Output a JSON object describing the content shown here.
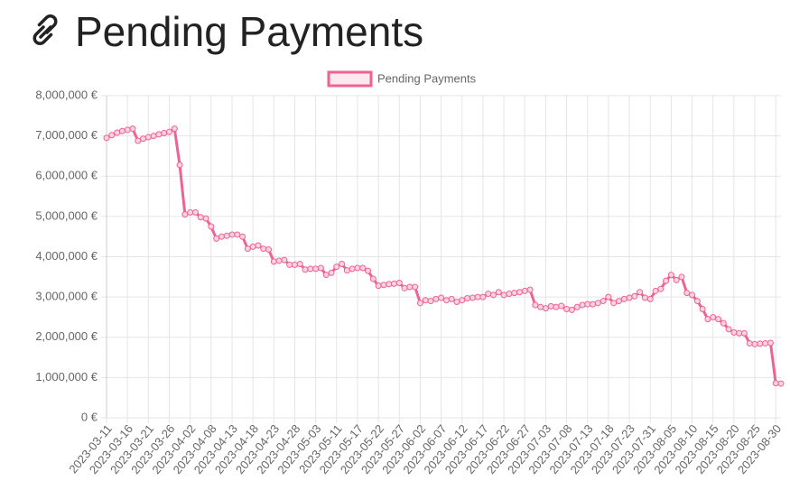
{
  "chart_data": {
    "type": "line",
    "title": "Pending Payments",
    "categories": [
      "2023-03-11",
      null,
      null,
      null,
      "2023-03-16",
      null,
      null,
      null,
      "2023-03-21",
      null,
      null,
      null,
      "2023-03-26",
      null,
      null,
      null,
      "2023-04-02",
      null,
      null,
      null,
      "2023-04-08",
      null,
      null,
      null,
      "2023-04-13",
      null,
      null,
      null,
      "2023-04-18",
      null,
      null,
      null,
      "2023-04-23",
      null,
      null,
      null,
      "2023-04-28",
      null,
      null,
      null,
      "2023-05-03",
      null,
      null,
      null,
      "2023-05-11",
      null,
      null,
      null,
      "2023-05-17",
      null,
      null,
      null,
      "2023-05-22",
      null,
      null,
      null,
      "2023-05-27",
      null,
      null,
      null,
      "2023-06-02",
      null,
      null,
      null,
      "2023-06-07",
      null,
      null,
      null,
      "2023-06-12",
      null,
      null,
      null,
      "2023-06-17",
      null,
      null,
      null,
      "2023-06-22",
      null,
      null,
      null,
      "2023-06-27",
      null,
      null,
      null,
      "2023-07-03",
      null,
      null,
      null,
      "2023-07-08",
      null,
      null,
      null,
      "2023-07-13",
      null,
      null,
      null,
      "2023-07-18",
      null,
      null,
      null,
      "2023-07-23",
      null,
      null,
      null,
      "2023-07-31",
      null,
      null,
      null,
      "2023-08-05",
      null,
      null,
      null,
      "2023-08-10",
      null,
      null,
      null,
      "2023-08-15",
      null,
      null,
      null,
      "2023-08-20",
      null,
      null,
      null,
      "2023-08-25",
      null,
      null,
      null,
      "2023-08-30",
      null
    ],
    "series": [
      {
        "name": "Pending Payments",
        "color": "#f06292",
        "values": [
          6950000,
          7020000,
          7080000,
          7120000,
          7150000,
          7180000,
          6880000,
          6930000,
          6970000,
          7000000,
          7040000,
          7070000,
          7100000,
          7180000,
          6280000,
          5050000,
          5100000,
          5100000,
          4980000,
          4950000,
          4750000,
          4450000,
          4500000,
          4520000,
          4550000,
          4550000,
          4500000,
          4200000,
          4250000,
          4280000,
          4200000,
          4180000,
          3880000,
          3900000,
          3920000,
          3800000,
          3800000,
          3820000,
          3680000,
          3700000,
          3700000,
          3720000,
          3550000,
          3600000,
          3750000,
          3820000,
          3660000,
          3700000,
          3720000,
          3720000,
          3650000,
          3450000,
          3280000,
          3300000,
          3320000,
          3330000,
          3350000,
          3220000,
          3250000,
          3250000,
          2850000,
          2920000,
          2900000,
          2950000,
          2980000,
          2920000,
          2950000,
          2880000,
          2920000,
          2970000,
          2980000,
          3000000,
          3000000,
          3080000,
          3050000,
          3120000,
          3050000,
          3080000,
          3100000,
          3120000,
          3150000,
          3180000,
          2800000,
          2750000,
          2720000,
          2770000,
          2750000,
          2780000,
          2700000,
          2680000,
          2750000,
          2800000,
          2820000,
          2820000,
          2850000,
          2900000,
          3000000,
          2850000,
          2900000,
          2950000,
          2980000,
          3020000,
          3120000,
          2980000,
          2950000,
          3150000,
          3200000,
          3400000,
          3550000,
          3420000,
          3500000,
          3100000,
          3050000,
          2900000,
          2700000,
          2450000,
          2500000,
          2450000,
          2350000,
          2200000,
          2120000,
          2100000,
          2100000,
          1850000,
          1830000,
          1840000,
          1850000,
          1860000,
          860000,
          850000
        ]
      }
    ],
    "ylim": [
      0,
      8000000
    ],
    "yticks": [
      {
        "value": 0,
        "label": "0 €"
      },
      {
        "value": 1000000,
        "label": "1,000,000 €"
      },
      {
        "value": 2000000,
        "label": "2,000,000 €"
      },
      {
        "value": 3000000,
        "label": "3,000,000 €"
      },
      {
        "value": 4000000,
        "label": "4,000,000 €"
      },
      {
        "value": 5000000,
        "label": "5,000,000 €"
      },
      {
        "value": 6000000,
        "label": "6,000,000 €"
      },
      {
        "value": 7000000,
        "label": "7,000,000 €"
      },
      {
        "value": 8000000,
        "label": "8,000,000 €"
      }
    ],
    "grid": true
  }
}
